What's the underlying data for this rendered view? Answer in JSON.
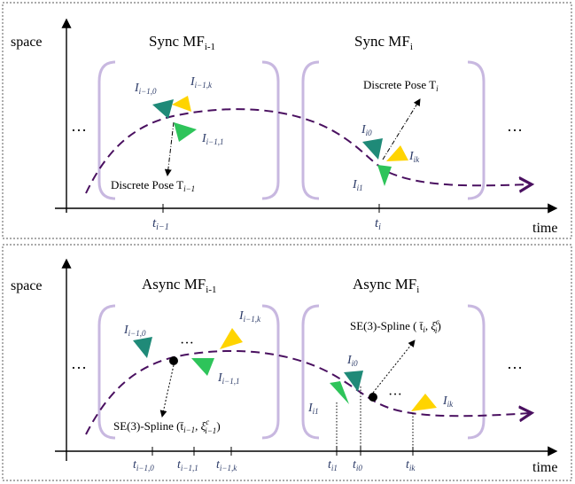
{
  "panel_top": {
    "y_axis_label": "space",
    "x_axis_label": "time",
    "group_left_title": "Sync MF",
    "group_left_sub": "i-1",
    "group_right_title": "Sync MF",
    "group_right_sub": "i",
    "ellipsis_left": "…",
    "ellipsis_right": "…",
    "tick_left": "t",
    "tick_left_sub": "i−1",
    "tick_right": "t",
    "tick_right_sub": "i",
    "pose_left": "Discrete Pose T",
    "pose_left_sub": "i−1",
    "pose_right": "Discrete Pose T",
    "pose_right_sub": "i",
    "img_labels": {
      "a0": {
        "base": "I",
        "sub": "i−1,0"
      },
      "ak": {
        "base": "I",
        "sub": "i−1,k"
      },
      "a1": {
        "base": "I",
        "sub": "i−1,1"
      },
      "b0": {
        "base": "I",
        "sub": "i0"
      },
      "bk": {
        "base": "I",
        "sub": "ik"
      },
      "b1": {
        "base": "I",
        "sub": "i1"
      }
    }
  },
  "panel_bottom": {
    "y_axis_label": "space",
    "x_axis_label": "time",
    "group_left_title": "Async MF",
    "group_left_sub": "i-1",
    "group_right_title": "Async MF",
    "group_right_sub": "i",
    "ellipsis_left": "…",
    "ellipsis_right": "…",
    "mid_dots_left": "···",
    "mid_dots_right": "···",
    "spline_left": "SE(3)-Spline (t̄",
    "spline_left_sub": "i−1",
    "spline_left_xi": ", ξ",
    "spline_left_xi_sup": "c",
    "spline_left_xi_sub": "i−1",
    "spline_right": "SE(3)-Spline ( t̄",
    "spline_right_sub": "i",
    "spline_right_xi": ", ξ",
    "spline_right_xi_sup": "c",
    "spline_right_xi_sub": "i",
    "ticks": [
      {
        "base": "t",
        "sub": "i−1,0"
      },
      {
        "base": "t",
        "sub": "i−1,1"
      },
      {
        "base": "t",
        "sub": "i−1,k"
      },
      {
        "base": "t",
        "sub": "i1"
      },
      {
        "base": "t",
        "sub": "i0"
      },
      {
        "base": "t",
        "sub": "ik"
      }
    ],
    "img_labels": {
      "a0": {
        "base": "I",
        "sub": "i−1,0"
      },
      "ak": {
        "base": "I",
        "sub": "i−1,k"
      },
      "a1": {
        "base": "I",
        "sub": "i−1,1"
      },
      "b0": {
        "base": "I",
        "sub": "i0"
      },
      "bk": {
        "base": "I",
        "sub": "ik"
      },
      "b1": {
        "base": "I",
        "sub": "i1"
      }
    }
  },
  "colors": {
    "curve": "#4a1060",
    "bracket": "#c8b8e0",
    "tri_dark": "#1f8a78",
    "tri_green": "#2ec45a",
    "tri_yellow": "#ffd400",
    "label": "#2b3a67",
    "border": "#777777"
  }
}
